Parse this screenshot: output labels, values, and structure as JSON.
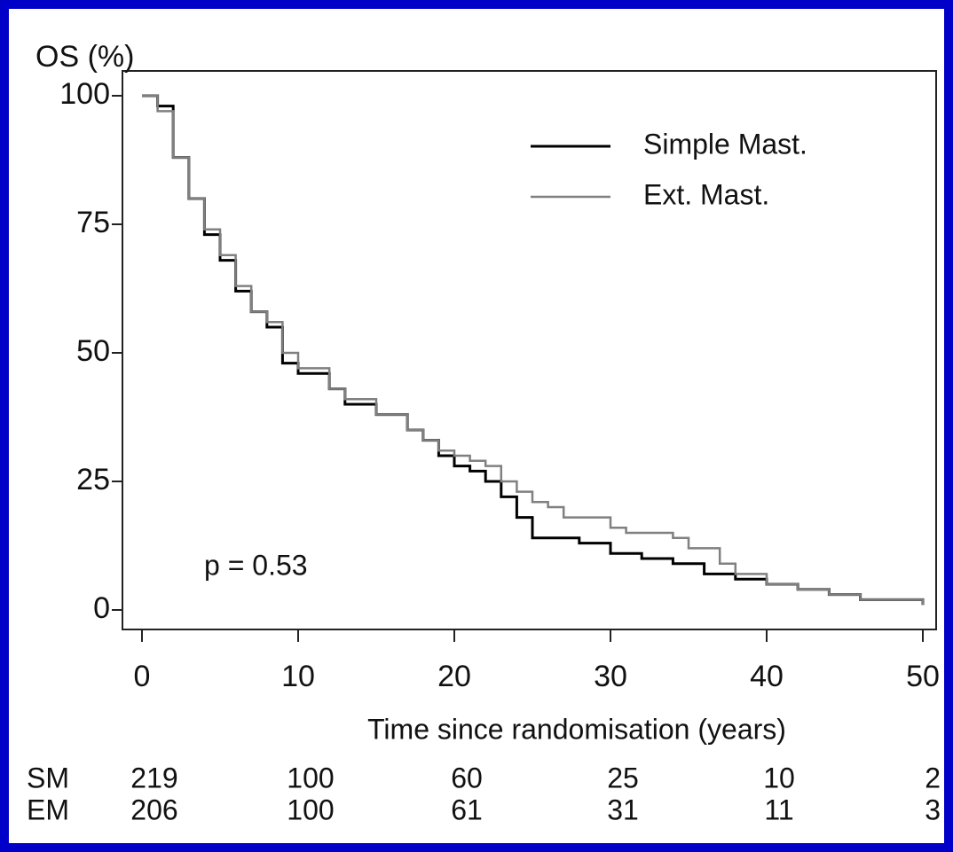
{
  "chart_data": {
    "type": "step",
    "y_label": "OS (%)",
    "x_label": "Time since randomisation (years)",
    "annotation": "p = 0.53",
    "xlim": [
      0,
      50
    ],
    "ylim": [
      0,
      100
    ],
    "xticks": [
      0,
      10,
      20,
      30,
      40,
      50
    ],
    "yticks": [
      0,
      25,
      50,
      75,
      100
    ],
    "legend": "upper-right",
    "series": [
      {
        "name": "Simple Mast.",
        "color": "#000000",
        "x": [
          0,
          1,
          2,
          3,
          4,
          5,
          6,
          7,
          8,
          9,
          10,
          12,
          13,
          15,
          17,
          18,
          19,
          20,
          21,
          22,
          23,
          24,
          25,
          28,
          30,
          32,
          34,
          36,
          38,
          40,
          42,
          44,
          46,
          48,
          50
        ],
        "values": [
          100,
          98,
          88,
          80,
          73,
          68,
          62,
          58,
          55,
          48,
          46,
          43,
          40,
          38,
          35,
          33,
          30,
          28,
          27,
          25,
          22,
          18,
          14,
          13,
          11,
          10,
          9,
          7,
          6,
          5,
          4,
          3,
          2,
          2,
          1
        ]
      },
      {
        "name": "Ext. Mast.",
        "color": "#808080",
        "x": [
          0,
          1,
          2,
          3,
          4,
          5,
          6,
          7,
          8,
          9,
          10,
          12,
          13,
          15,
          17,
          18,
          19,
          20,
          21,
          22,
          23,
          24,
          25,
          26,
          27,
          29,
          30,
          31,
          34,
          35,
          37,
          38,
          40,
          42,
          44,
          46,
          48,
          50
        ],
        "values": [
          100,
          97,
          88,
          80,
          74,
          69,
          63,
          58,
          56,
          50,
          47,
          43,
          41,
          38,
          35,
          33,
          31,
          30,
          29,
          28,
          25,
          23,
          21,
          20,
          18,
          18,
          16,
          15,
          14,
          12,
          9,
          7,
          5,
          4,
          3,
          2,
          2,
          1
        ]
      }
    ],
    "at_risk": [
      {
        "label": "SM",
        "values": [
          219,
          100,
          60,
          25,
          10,
          2
        ]
      },
      {
        "label": "EM",
        "values": [
          206,
          100,
          61,
          31,
          11,
          3
        ]
      }
    ]
  }
}
